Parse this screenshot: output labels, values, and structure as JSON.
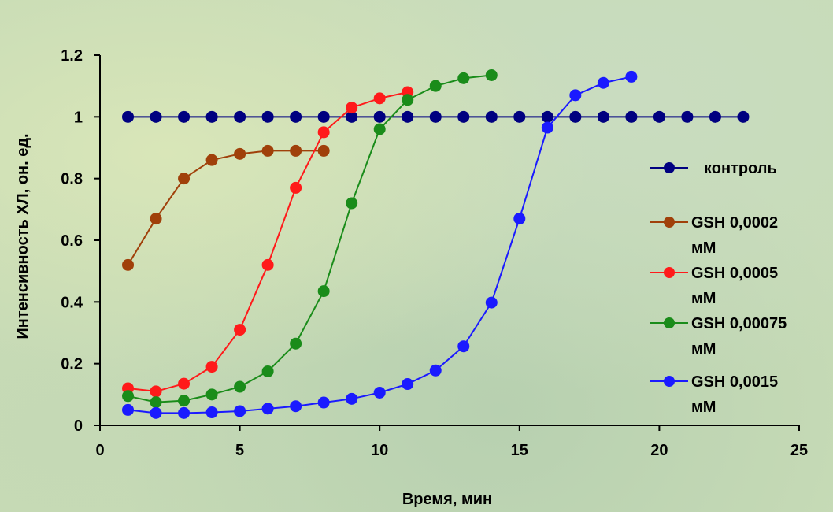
{
  "chart_data": {
    "type": "line",
    "xlabel": "Время, мин",
    "ylabel": "Интенсивность ХЛ, он. ед.",
    "xlim": [
      0,
      25
    ],
    "ylim": [
      0,
      1.2
    ],
    "x_ticks": [
      "0",
      "5",
      "10",
      "15",
      "20",
      "25"
    ],
    "y_ticks": [
      "0",
      "0.2",
      "0.4",
      "0.6",
      "0.8",
      "1",
      "1.2"
    ],
    "grid": false,
    "legend_position": "right",
    "series": [
      {
        "name": "контроль",
        "color": "#000080",
        "x": [
          1,
          2,
          3,
          4,
          5,
          6,
          7,
          8,
          9,
          10,
          11,
          12,
          13,
          14,
          15,
          16,
          17,
          18,
          19,
          20,
          21,
          22,
          23
        ],
        "y": [
          1,
          1,
          1,
          1,
          1,
          1,
          1,
          1,
          1,
          1,
          1,
          1,
          1,
          1,
          1,
          1,
          1,
          1,
          1,
          1,
          1,
          1,
          1
        ]
      },
      {
        "name": "GSH 0,0002 мМ",
        "color": "#a0400a",
        "x": [
          1,
          2,
          3,
          4,
          5,
          6,
          7,
          8
        ],
        "y": [
          0.52,
          0.67,
          0.8,
          0.86,
          0.88,
          0.89,
          0.89,
          0.89
        ]
      },
      {
        "name": "GSH 0,0005 мМ",
        "color": "#ff1a1a",
        "x": [
          1,
          2,
          3,
          4,
          5,
          6,
          7,
          8,
          9,
          10,
          11
        ],
        "y": [
          0.12,
          0.11,
          0.135,
          0.19,
          0.31,
          0.52,
          0.77,
          0.95,
          1.03,
          1.06,
          1.08
        ]
      },
      {
        "name": "GSH 0,00075 мМ",
        "color": "#1a8c1a",
        "x": [
          1,
          2,
          3,
          4,
          5,
          6,
          7,
          8,
          9,
          10,
          11,
          12,
          13,
          14
        ],
        "y": [
          0.095,
          0.075,
          0.08,
          0.1,
          0.125,
          0.175,
          0.265,
          0.435,
          0.72,
          0.96,
          1.055,
          1.1,
          1.125,
          1.135
        ]
      },
      {
        "name": "GSH 0,0015 мМ",
        "color": "#1a1aff",
        "x": [
          1,
          2,
          3,
          4,
          5,
          6,
          7,
          8,
          9,
          10,
          11,
          12,
          13,
          14,
          15,
          16,
          17,
          18,
          19
        ],
        "y": [
          0.05,
          0.04,
          0.04,
          0.042,
          0.046,
          0.054,
          0.062,
          0.074,
          0.086,
          0.106,
          0.134,
          0.178,
          0.256,
          0.398,
          0.67,
          0.965,
          1.07,
          1.11,
          1.13
        ]
      }
    ]
  },
  "legend": {
    "items": [
      {
        "line1": "контроль",
        "line2": ""
      },
      {
        "line1": "GSH 0,0002",
        "line2": "мМ"
      },
      {
        "line1": "GSH 0,0005",
        "line2": "мМ"
      },
      {
        "line1": "GSH 0,00075",
        "line2": "мМ"
      },
      {
        "line1": "GSH 0,0015",
        "line2": "мМ"
      }
    ]
  }
}
